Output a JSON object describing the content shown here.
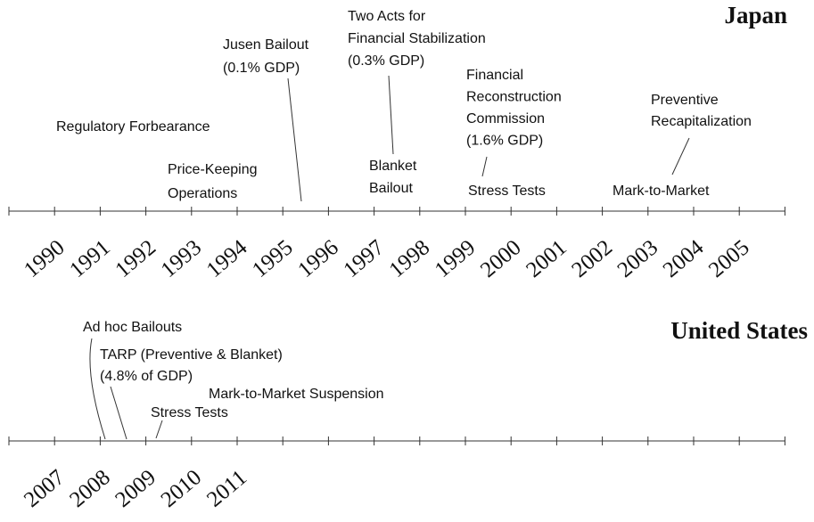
{
  "japan": {
    "title": "Japan",
    "years": [
      "1990",
      "1991",
      "1992",
      "1993",
      "1994",
      "1995",
      "1996",
      "1997",
      "1998",
      "1999",
      "2000",
      "2001",
      "2002",
      "2003",
      "2004",
      "2005"
    ],
    "events": [
      {
        "lines": [
          "Regulatory Forbearance"
        ]
      },
      {
        "lines": [
          "Price-Keeping",
          "Operations"
        ]
      },
      {
        "lines": [
          "Jusen Bailout",
          "(0.1% GDP)"
        ]
      },
      {
        "lines": [
          "Two Acts for",
          "Financial Stabilization",
          "(0.3% GDP)"
        ]
      },
      {
        "lines": [
          "Blanket",
          "Bailout"
        ]
      },
      {
        "lines": [
          "Financial",
          "Reconstruction",
          "Commission",
          "(1.6% GDP)"
        ]
      },
      {
        "lines": [
          "Stress Tests"
        ]
      },
      {
        "lines": [
          "Preventive",
          "Recapitalization"
        ]
      },
      {
        "lines": [
          "Mark-to-Market"
        ]
      }
    ]
  },
  "united_states": {
    "title": "United States",
    "years": [
      "2007",
      "2008",
      "2009",
      "2010",
      "2011"
    ],
    "events": [
      {
        "lines": [
          "Ad hoc Bailouts"
        ]
      },
      {
        "lines": [
          "TARP (Preventive & Blanket)",
          "(4.8% of GDP)"
        ]
      },
      {
        "lines": [
          "Mark-to-Market Suspension"
        ]
      },
      {
        "lines": [
          "Stress Tests"
        ]
      }
    ]
  }
}
